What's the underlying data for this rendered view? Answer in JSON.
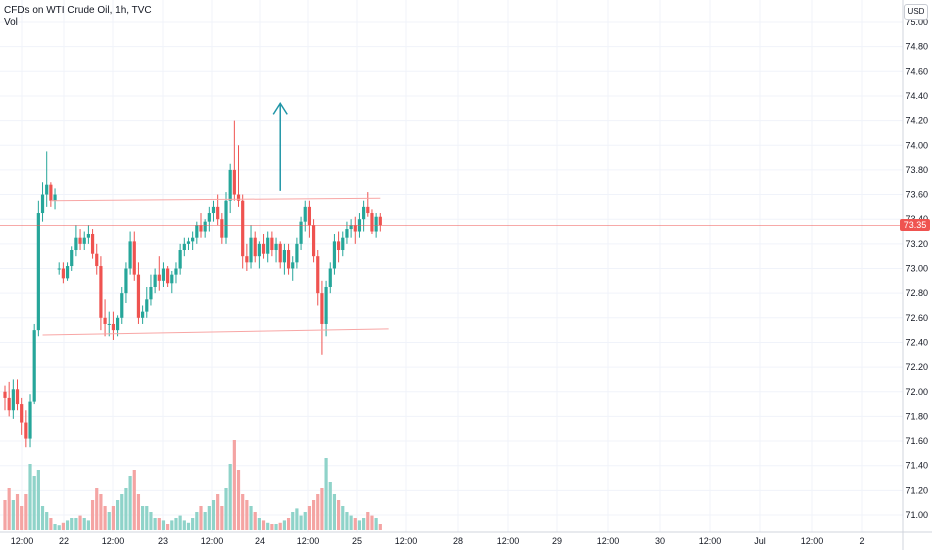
{
  "legend": {
    "title": "CFDs on WTI Crude Oil, 1h, TVC",
    "volume_label": "Vol"
  },
  "currency": "USD",
  "last_price_label": "73.35",
  "colors": {
    "up": "#26a69a",
    "down": "#ef5350",
    "vol_up": "#8fd3c9",
    "vol_down": "#f4a4a3",
    "grid": "#f0f3fa",
    "support_resistance": "#f8a6a5",
    "arrow": "#2196a7"
  },
  "chart_data": {
    "type": "candlestick",
    "symbol": "CFDs on WTI Crude Oil",
    "interval": "1h",
    "source": "TVC",
    "y_axis": {
      "min": 70.9,
      "max": 75.1,
      "ticks": [
        "75.00",
        "74.80",
        "74.60",
        "74.40",
        "74.20",
        "74.00",
        "73.80",
        "73.60",
        "73.40",
        "73.20",
        "73.00",
        "72.80",
        "72.60",
        "72.40",
        "72.20",
        "72.00",
        "71.80",
        "71.60",
        "71.40",
        "71.20",
        "71.00"
      ]
    },
    "x_axis": {
      "ticks": [
        "12:00",
        "22",
        "12:00",
        "23",
        "12:00",
        "24",
        "12:00",
        "25",
        "12:00",
        "28",
        "12:00",
        "29",
        "12:00",
        "30",
        "12:00",
        "Jul",
        "12:00",
        "2"
      ]
    },
    "last_price": 73.35,
    "horizontal_lines": [
      {
        "from_bar": 11,
        "to_bar": 90,
        "price_start": 73.55,
        "price_end": 73.57
      },
      {
        "from_bar": 9,
        "to_bar": 92,
        "price_start": 72.46,
        "price_end": 72.51
      }
    ],
    "arrow": {
      "bar": 66,
      "price_from": 73.63,
      "price_to": 74.34,
      "direction": "up"
    },
    "candles": [
      [
        72.0,
        72.05,
        71.85,
        71.95,
        0.25
      ],
      [
        71.95,
        72.08,
        71.8,
        71.85,
        0.35
      ],
      [
        71.85,
        72.1,
        71.78,
        72.02,
        0.25
      ],
      [
        72.02,
        72.1,
        71.85,
        71.9,
        0.3
      ],
      [
        71.9,
        71.95,
        71.65,
        71.75,
        0.2
      ],
      [
        71.75,
        71.85,
        71.55,
        71.62,
        0.3
      ],
      [
        71.62,
        71.98,
        71.55,
        71.92,
        0.55
      ],
      [
        71.92,
        72.55,
        71.9,
        72.5,
        0.45
      ],
      [
        72.5,
        73.55,
        72.45,
        73.45,
        0.5
      ],
      [
        73.45,
        73.7,
        73.38,
        73.6,
        0.2
      ],
      [
        73.6,
        73.95,
        73.5,
        73.68,
        0.15
      ],
      [
        73.68,
        73.7,
        73.5,
        73.55,
        0.1
      ],
      [
        73.55,
        73.65,
        73.48,
        73.6,
        0.05
      ],
      [
        73.0,
        73.05,
        72.95,
        73.0,
        0.04
      ],
      [
        73.0,
        73.05,
        72.88,
        72.92,
        0.06
      ],
      [
        72.92,
        73.05,
        72.9,
        73.02,
        0.08
      ],
      [
        73.02,
        73.18,
        72.98,
        73.15,
        0.1
      ],
      [
        73.15,
        73.35,
        73.1,
        73.25,
        0.1
      ],
      [
        73.25,
        73.32,
        73.15,
        73.2,
        0.12
      ],
      [
        73.2,
        73.3,
        73.15,
        73.25,
        0.1
      ],
      [
        73.25,
        73.35,
        73.2,
        73.28,
        0.08
      ],
      [
        73.28,
        73.32,
        73.08,
        73.12,
        0.25
      ],
      [
        73.12,
        73.2,
        72.95,
        73.02,
        0.35
      ],
      [
        73.02,
        73.1,
        72.5,
        72.6,
        0.3
      ],
      [
        72.6,
        72.75,
        72.45,
        72.55,
        0.2
      ],
      [
        72.55,
        72.65,
        72.45,
        72.55,
        0.15
      ],
      [
        72.55,
        72.65,
        72.42,
        72.5,
        0.2
      ],
      [
        72.5,
        72.62,
        72.45,
        72.6,
        0.25
      ],
      [
        72.6,
        72.85,
        72.55,
        72.8,
        0.3
      ],
      [
        72.8,
        73.05,
        72.72,
        73.0,
        0.35
      ],
      [
        73.0,
        73.3,
        72.95,
        73.22,
        0.45
      ],
      [
        73.22,
        73.3,
        72.9,
        72.95,
        0.5
      ],
      [
        72.95,
        73.05,
        72.55,
        72.6,
        0.3
      ],
      [
        72.6,
        72.7,
        72.55,
        72.65,
        0.2
      ],
      [
        72.65,
        72.85,
        72.6,
        72.75,
        0.2
      ],
      [
        72.75,
        72.95,
        72.7,
        72.85,
        0.15
      ],
      [
        72.85,
        73.0,
        72.8,
        72.95,
        0.1
      ],
      [
        72.95,
        73.1,
        72.82,
        72.9,
        0.1
      ],
      [
        72.9,
        73.05,
        72.85,
        73.0,
        0.08
      ],
      [
        73.0,
        73.02,
        72.85,
        72.88,
        0.05
      ],
      [
        72.88,
        72.98,
        72.8,
        72.95,
        0.08
      ],
      [
        72.95,
        73.05,
        72.88,
        73.0,
        0.1
      ],
      [
        73.0,
        73.2,
        72.95,
        73.15,
        0.12
      ],
      [
        73.15,
        73.25,
        73.1,
        73.2,
        0.08
      ],
      [
        73.2,
        73.25,
        73.15,
        73.22,
        0.06
      ],
      [
        73.22,
        73.3,
        73.15,
        73.25,
        0.1
      ],
      [
        73.25,
        73.38,
        73.2,
        73.35,
        0.15
      ],
      [
        73.35,
        73.45,
        73.25,
        73.3,
        0.2
      ],
      [
        73.3,
        73.4,
        73.25,
        73.38,
        0.15
      ],
      [
        73.38,
        73.5,
        73.3,
        73.45,
        0.2
      ],
      [
        73.45,
        73.55,
        73.38,
        73.5,
        0.25
      ],
      [
        73.5,
        73.6,
        73.35,
        73.4,
        0.3
      ],
      [
        73.4,
        73.45,
        73.2,
        73.25,
        0.2
      ],
      [
        73.25,
        73.62,
        73.2,
        73.55,
        0.35
      ],
      [
        73.55,
        73.85,
        73.45,
        73.8,
        0.55
      ],
      [
        73.8,
        74.2,
        73.55,
        73.6,
        0.75
      ],
      [
        73.6,
        74.0,
        73.5,
        73.55,
        0.5
      ],
      [
        73.55,
        73.6,
        73.0,
        73.1,
        0.3
      ],
      [
        73.1,
        73.2,
        72.98,
        73.05,
        0.25
      ],
      [
        73.05,
        73.35,
        73.0,
        73.25,
        0.2
      ],
      [
        73.25,
        73.3,
        73.05,
        73.1,
        0.15
      ],
      [
        73.1,
        73.22,
        73.0,
        73.2,
        0.1
      ],
      [
        73.2,
        73.28,
        73.08,
        73.12,
        0.08
      ],
      [
        73.12,
        73.3,
        73.05,
        73.25,
        0.06
      ],
      [
        73.25,
        73.3,
        73.1,
        73.15,
        0.05
      ],
      [
        73.15,
        73.25,
        73.05,
        73.2,
        0.05
      ],
      [
        73.2,
        73.22,
        73.0,
        73.05,
        0.06
      ],
      [
        73.05,
        73.2,
        72.95,
        73.15,
        0.08
      ],
      [
        73.15,
        73.2,
        72.95,
        73.0,
        0.1
      ],
      [
        73.0,
        73.1,
        72.9,
        73.05,
        0.15
      ],
      [
        73.05,
        73.25,
        73.0,
        73.2,
        0.18
      ],
      [
        73.2,
        73.42,
        73.15,
        73.38,
        0.12
      ],
      [
        73.38,
        73.55,
        73.3,
        73.5,
        0.15
      ],
      [
        73.5,
        73.55,
        73.25,
        73.35,
        0.2
      ],
      [
        73.35,
        73.4,
        73.05,
        73.1,
        0.25
      ],
      [
        73.1,
        73.15,
        72.7,
        72.8,
        0.3
      ],
      [
        72.8,
        72.9,
        72.3,
        72.55,
        0.35
      ],
      [
        72.55,
        72.9,
        72.45,
        72.85,
        0.6
      ],
      [
        72.85,
        73.05,
        72.8,
        73.0,
        0.4
      ],
      [
        73.0,
        73.28,
        72.95,
        73.22,
        0.3
      ],
      [
        73.22,
        73.3,
        73.05,
        73.15,
        0.25
      ],
      [
        73.15,
        73.3,
        73.1,
        73.25,
        0.2
      ],
      [
        73.25,
        73.38,
        73.2,
        73.32,
        0.15
      ],
      [
        73.32,
        73.4,
        73.25,
        73.35,
        0.12
      ],
      [
        73.35,
        73.42,
        73.2,
        73.3,
        0.1
      ],
      [
        73.3,
        73.45,
        73.25,
        73.4,
        0.08
      ],
      [
        73.4,
        73.55,
        73.3,
        73.5,
        0.1
      ],
      [
        73.5,
        73.62,
        73.42,
        73.45,
        0.15
      ],
      [
        73.45,
        73.48,
        73.28,
        73.3,
        0.12
      ],
      [
        73.3,
        73.45,
        73.25,
        73.42,
        0.1
      ],
      [
        73.42,
        73.45,
        73.3,
        73.35,
        0.05
      ]
    ]
  }
}
